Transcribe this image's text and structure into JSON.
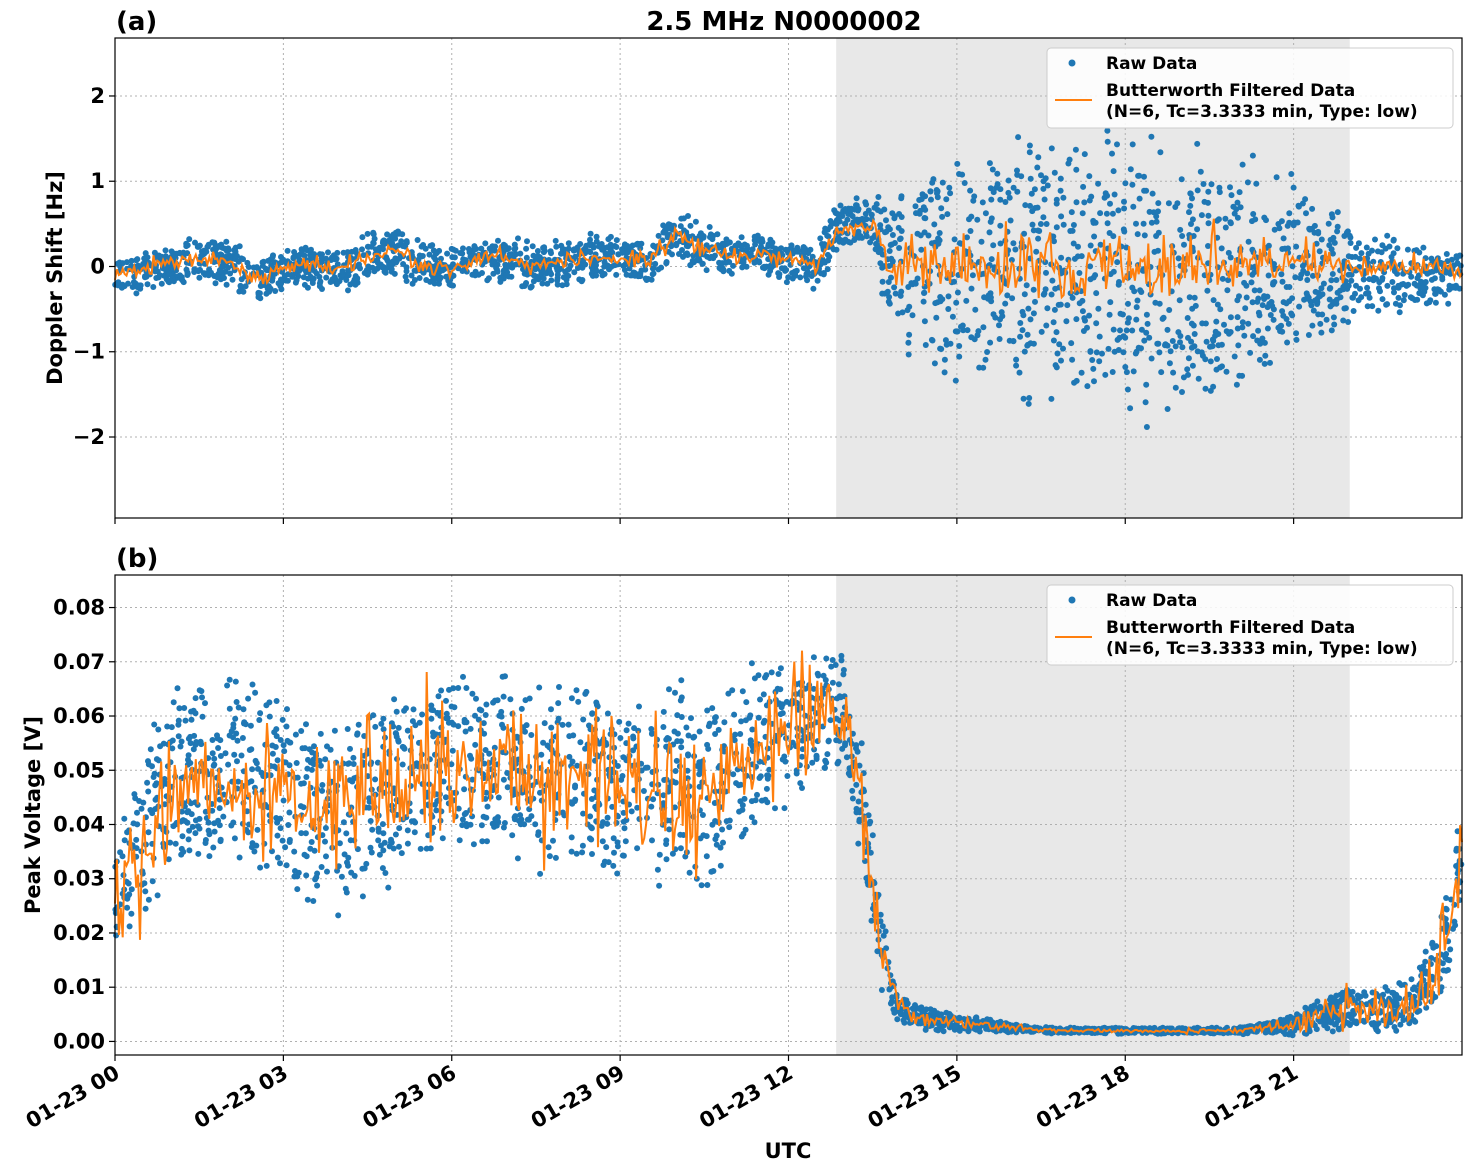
{
  "figure": {
    "title": "2.5 MHz N0000002",
    "xlabel": "UTC",
    "legend_placement": "top-right"
  },
  "colors": {
    "raw": "#1f77b4",
    "filtered": "#ff7f0e",
    "shade": "#e8e8e8",
    "grid": "#b0b0b0"
  },
  "chart_data": [
    {
      "type": "scatter",
      "panel_label": "(a)",
      "ylabel": "Doppler Shift [Hz]",
      "xlim_hours": [
        0,
        24
      ],
      "ylim": [
        -2.95,
        2.68
      ],
      "yticks": [
        -2,
        -1,
        0,
        1,
        2
      ],
      "ytick_labels": [
        "−2",
        "−1",
        "0",
        "1",
        "2"
      ],
      "xticks_hours": [
        0,
        3,
        6,
        9,
        12,
        15,
        18,
        21
      ],
      "xtick_labels": [
        "01-23 00",
        "01-23 03",
        "01-23 06",
        "01-23 09",
        "01-23 12",
        "01-23 15",
        "01-23 18",
        "01-23 21"
      ],
      "grid": true,
      "shaded_interval_hours": [
        12.85,
        22.0
      ],
      "legend": [
        "Raw Data",
        "Butterworth Filtered Data",
        "(N=6, Tc=3.3333 min, Type: low)"
      ],
      "series": [
        {
          "kind": "raw",
          "x_hours": [
            0,
            0.5,
            1.0,
            1.5,
            2.0,
            2.5,
            3.0,
            3.5,
            4.0,
            4.5,
            5.0,
            5.5,
            6.0,
            6.5,
            7.0,
            7.5,
            8.0,
            8.5,
            9.0,
            9.5,
            10.0,
            10.5,
            11.0,
            11.5,
            12.0,
            12.5,
            12.8,
            13.0,
            13.5,
            13.8,
            14.0,
            14.5,
            15.0,
            15.5,
            16.0,
            16.5,
            17.0,
            17.5,
            18.0,
            18.5,
            19.0,
            19.5,
            20.0,
            20.5,
            21.0,
            21.5,
            22.0,
            22.5,
            23.0,
            23.5,
            24.0
          ],
          "center": [
            -0.15,
            -0.05,
            0.0,
            0.1,
            0.05,
            -0.15,
            -0.05,
            0.0,
            -0.1,
            0.1,
            0.2,
            0.0,
            0.0,
            0.05,
            0.1,
            0.0,
            0.05,
            0.1,
            0.1,
            0.05,
            0.4,
            0.2,
            0.1,
            0.15,
            0.05,
            0.0,
            0.4,
            0.5,
            0.55,
            0.1,
            0.05,
            0.0,
            -0.05,
            -0.1,
            0.0,
            -0.1,
            -0.15,
            -0.1,
            -0.1,
            -0.15,
            -0.15,
            -0.1,
            -0.1,
            -0.05,
            0.0,
            -0.05,
            -0.1,
            -0.1,
            -0.1,
            -0.15,
            -0.1
          ],
          "spread": [
            0.25,
            0.25,
            0.25,
            0.3,
            0.3,
            0.3,
            0.25,
            0.25,
            0.3,
            0.3,
            0.3,
            0.3,
            0.25,
            0.25,
            0.3,
            0.3,
            0.3,
            0.3,
            0.25,
            0.3,
            0.35,
            0.3,
            0.25,
            0.25,
            0.25,
            0.3,
            0.35,
            0.3,
            0.3,
            0.9,
            1.1,
            1.3,
            1.5,
            1.5,
            1.6,
            1.7,
            1.8,
            1.8,
            1.8,
            1.75,
            1.7,
            1.6,
            1.5,
            1.4,
            1.2,
            0.9,
            0.7,
            0.5,
            0.45,
            0.4,
            0.35
          ]
        },
        {
          "kind": "filtered",
          "x_hours": [
            0,
            0.5,
            1.0,
            1.5,
            2.0,
            2.5,
            3.0,
            3.5,
            4.0,
            4.5,
            5.0,
            5.5,
            6.0,
            6.5,
            7.0,
            7.5,
            8.0,
            8.5,
            9.0,
            9.5,
            10.0,
            10.5,
            11.0,
            11.5,
            12.0,
            12.5,
            12.8,
            13.0,
            13.5,
            13.8,
            14.0,
            14.5,
            15.0,
            15.5,
            16.0,
            16.5,
            17.0,
            17.5,
            18.0,
            18.5,
            19.0,
            19.5,
            20.0,
            20.5,
            21.0,
            21.5,
            22.0,
            22.5,
            23.0,
            23.5,
            24.0
          ],
          "center": [
            -0.1,
            -0.05,
            0.05,
            0.1,
            0.05,
            -0.15,
            0.0,
            0.05,
            -0.05,
            0.1,
            0.2,
            0.0,
            -0.05,
            0.1,
            0.1,
            0.0,
            0.05,
            0.1,
            0.1,
            0.05,
            0.4,
            0.2,
            0.1,
            0.15,
            0.1,
            0.0,
            0.35,
            0.45,
            0.5,
            0.05,
            0.0,
            0.0,
            -0.05,
            0.0,
            0.0,
            0.0,
            -0.05,
            0.0,
            0.0,
            -0.05,
            0.0,
            0.0,
            0.0,
            0.0,
            0.0,
            0.0,
            0.0,
            0.0,
            0.0,
            0.0,
            -0.05
          ],
          "noise": [
            0.05,
            0.05,
            0.05,
            0.05,
            0.05,
            0.05,
            0.05,
            0.05,
            0.05,
            0.05,
            0.05,
            0.05,
            0.05,
            0.05,
            0.05,
            0.05,
            0.05,
            0.05,
            0.05,
            0.05,
            0.05,
            0.05,
            0.05,
            0.05,
            0.05,
            0.05,
            0.05,
            0.05,
            0.05,
            0.1,
            0.12,
            0.15,
            0.18,
            0.2,
            0.2,
            0.22,
            0.22,
            0.22,
            0.22,
            0.2,
            0.2,
            0.2,
            0.18,
            0.15,
            0.12,
            0.1,
            0.07,
            0.05,
            0.05,
            0.05,
            0.05
          ]
        }
      ]
    },
    {
      "type": "scatter",
      "panel_label": "(b)",
      "ylabel": "Peak Voltage [V]",
      "xlim_hours": [
        0,
        24
      ],
      "ylim": [
        -0.0025,
        0.086
      ],
      "yticks": [
        0.0,
        0.01,
        0.02,
        0.03,
        0.04,
        0.05,
        0.06,
        0.07,
        0.08
      ],
      "ytick_labels": [
        "0.00",
        "0.01",
        "0.02",
        "0.03",
        "0.04",
        "0.05",
        "0.06",
        "0.07",
        "0.08"
      ],
      "xticks_hours": [
        0,
        3,
        6,
        9,
        12,
        15,
        18,
        21
      ],
      "xtick_labels": [
        "01-23 00",
        "01-23 03",
        "01-23 06",
        "01-23 09",
        "01-23 12",
        "01-23 15",
        "01-23 18",
        "01-23 21"
      ],
      "grid": true,
      "shaded_interval_hours": [
        12.85,
        22.0
      ],
      "legend": [
        "Raw Data",
        "Butterworth Filtered Data",
        "(N=6, Tc=3.3333 min, Type: low)"
      ],
      "series": [
        {
          "kind": "raw",
          "x_hours": [
            0,
            0.5,
            1.0,
            1.5,
            2.0,
            2.5,
            3.0,
            3.5,
            4.0,
            4.5,
            5.0,
            5.5,
            6.0,
            6.5,
            7.0,
            7.5,
            8.0,
            8.5,
            9.0,
            9.5,
            10.0,
            10.5,
            11.0,
            11.5,
            12.0,
            12.5,
            13.0,
            13.3,
            13.5,
            13.7,
            13.9,
            14.0,
            14.5,
            15.0,
            15.5,
            16.0,
            16.5,
            17.0,
            17.5,
            18.0,
            18.5,
            19.0,
            19.5,
            20.0,
            20.5,
            21.0,
            21.5,
            22.0,
            22.5,
            23.0,
            23.3,
            23.6,
            23.8,
            24.0
          ],
          "center": [
            0.027,
            0.038,
            0.048,
            0.05,
            0.047,
            0.048,
            0.046,
            0.042,
            0.04,
            0.045,
            0.047,
            0.05,
            0.052,
            0.05,
            0.05,
            0.048,
            0.05,
            0.05,
            0.047,
            0.046,
            0.048,
            0.045,
            0.05,
            0.055,
            0.057,
            0.06,
            0.06,
            0.045,
            0.03,
            0.015,
            0.007,
            0.006,
            0.004,
            0.0035,
            0.003,
            0.0025,
            0.0022,
            0.002,
            0.002,
            0.002,
            0.002,
            0.002,
            0.002,
            0.002,
            0.0025,
            0.003,
            0.005,
            0.006,
            0.006,
            0.007,
            0.01,
            0.015,
            0.022,
            0.035
          ],
          "spread": [
            0.012,
            0.016,
            0.02,
            0.02,
            0.02,
            0.02,
            0.02,
            0.02,
            0.02,
            0.02,
            0.02,
            0.018,
            0.018,
            0.018,
            0.018,
            0.018,
            0.018,
            0.018,
            0.018,
            0.018,
            0.02,
            0.02,
            0.018,
            0.016,
            0.014,
            0.012,
            0.012,
            0.012,
            0.01,
            0.008,
            0.003,
            0.003,
            0.0022,
            0.0018,
            0.0013,
            0.0009,
            0.0007,
            0.0006,
            0.0006,
            0.0006,
            0.0006,
            0.0006,
            0.0006,
            0.0007,
            0.0012,
            0.002,
            0.0035,
            0.004,
            0.0045,
            0.005,
            0.006,
            0.008,
            0.01,
            0.014
          ]
        },
        {
          "kind": "filtered",
          "x_hours": [
            0,
            0.5,
            1.0,
            1.5,
            2.0,
            2.5,
            3.0,
            3.5,
            4.0,
            4.5,
            5.0,
            5.5,
            6.0,
            6.5,
            7.0,
            7.5,
            8.0,
            8.5,
            9.0,
            9.5,
            10.0,
            10.5,
            11.0,
            11.5,
            12.0,
            12.5,
            13.0,
            13.3,
            13.5,
            13.7,
            13.9,
            14.0,
            14.5,
            15.0,
            15.5,
            16.0,
            16.5,
            17.0,
            17.5,
            18.0,
            18.5,
            19.0,
            19.5,
            20.0,
            20.5,
            21.0,
            21.5,
            22.0,
            22.5,
            23.0,
            23.3,
            23.6,
            23.8,
            24.0
          ],
          "center": [
            0.027,
            0.038,
            0.048,
            0.05,
            0.047,
            0.048,
            0.046,
            0.042,
            0.04,
            0.045,
            0.047,
            0.05,
            0.052,
            0.05,
            0.05,
            0.048,
            0.05,
            0.05,
            0.047,
            0.046,
            0.048,
            0.045,
            0.05,
            0.055,
            0.057,
            0.06,
            0.058,
            0.045,
            0.03,
            0.015,
            0.007,
            0.006,
            0.004,
            0.0035,
            0.003,
            0.0025,
            0.0022,
            0.002,
            0.002,
            0.002,
            0.002,
            0.002,
            0.002,
            0.002,
            0.0025,
            0.003,
            0.005,
            0.006,
            0.006,
            0.007,
            0.01,
            0.015,
            0.022,
            0.035
          ],
          "noise": [
            0.005,
            0.006,
            0.007,
            0.007,
            0.007,
            0.007,
            0.007,
            0.007,
            0.007,
            0.007,
            0.007,
            0.006,
            0.006,
            0.006,
            0.006,
            0.006,
            0.006,
            0.006,
            0.006,
            0.006,
            0.007,
            0.007,
            0.006,
            0.006,
            0.005,
            0.005,
            0.004,
            0.004,
            0.003,
            0.002,
            0.001,
            0.001,
            0.0008,
            0.0006,
            0.0004,
            0.0003,
            0.0002,
            0.0002,
            0.0002,
            0.0002,
            0.0002,
            0.0002,
            0.0002,
            0.0003,
            0.0006,
            0.001,
            0.0015,
            0.0018,
            0.002,
            0.003,
            0.004,
            0.005,
            0.006,
            0.008
          ]
        }
      ]
    }
  ]
}
